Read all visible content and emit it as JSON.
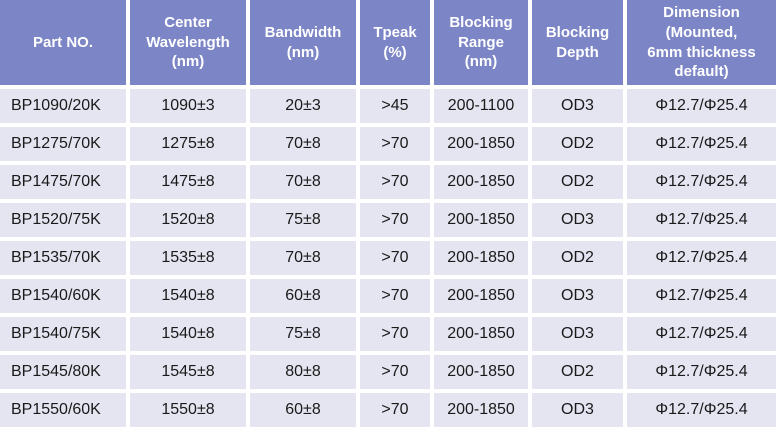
{
  "colors": {
    "header_bg": "#7C85C6",
    "header_text": "#FFFFFF",
    "row_bg": "#E4E5F1",
    "body_text": "#1A1A1A",
    "gutter": "#FFFFFF"
  },
  "table": {
    "columns": [
      {
        "id": "part-no",
        "label": "Part NO."
      },
      {
        "id": "center-wavelength",
        "label": "Center\nWavelength\n(nm)"
      },
      {
        "id": "bandwidth",
        "label": "Bandwidth\n(nm)"
      },
      {
        "id": "tpeak",
        "label": "Tpeak\n(%)"
      },
      {
        "id": "blocking-range",
        "label": "Blocking\nRange\n(nm)"
      },
      {
        "id": "blocking-depth",
        "label": "Blocking\nDepth"
      },
      {
        "id": "dimension",
        "label": "Dimension\n(Mounted,\n6mm thickness\ndefault)"
      }
    ],
    "rows": [
      [
        "BP1090/20K",
        "1090±3",
        "20±3",
        ">45",
        "200-1100",
        "OD3",
        "Φ12.7/Φ25.4"
      ],
      [
        "BP1275/70K",
        "1275±8",
        "70±8",
        ">70",
        "200-1850",
        "OD2",
        "Φ12.7/Φ25.4"
      ],
      [
        "BP1475/70K",
        "1475±8",
        "70±8",
        ">70",
        "200-1850",
        "OD2",
        "Φ12.7/Φ25.4"
      ],
      [
        "BP1520/75K",
        "1520±8",
        "75±8",
        ">70",
        "200-1850",
        "OD3",
        "Φ12.7/Φ25.4"
      ],
      [
        "BP1535/70K",
        "1535±8",
        "70±8",
        ">70",
        "200-1850",
        "OD2",
        "Φ12.7/Φ25.4"
      ],
      [
        "BP1540/60K",
        "1540±8",
        "60±8",
        ">70",
        "200-1850",
        "OD3",
        "Φ12.7/Φ25.4"
      ],
      [
        "BP1540/75K",
        "1540±8",
        "75±8",
        ">70",
        "200-1850",
        "OD3",
        "Φ12.7/Φ25.4"
      ],
      [
        "BP1545/80K",
        "1545±8",
        "80±8",
        ">70",
        "200-1850",
        "OD2",
        "Φ12.7/Φ25.4"
      ],
      [
        "BP1550/60K",
        "1550±8",
        "60±8",
        ">70",
        "200-1850",
        "OD3",
        "Φ12.7/Φ25.4"
      ]
    ]
  }
}
